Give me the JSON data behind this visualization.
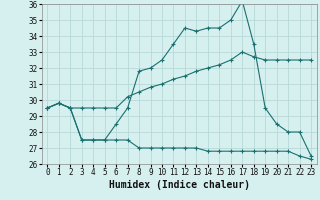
{
  "xlabel": "Humidex (Indice chaleur)",
  "background_color": "#d6f0ef",
  "grid_color": "#b8d8d8",
  "line_color": "#1a7070",
  "x": [
    0,
    1,
    2,
    3,
    4,
    5,
    6,
    7,
    8,
    9,
    10,
    11,
    12,
    13,
    14,
    15,
    16,
    17,
    18,
    19,
    20,
    21,
    22,
    23
  ],
  "y_max": [
    29.5,
    29.8,
    29.5,
    27.5,
    27.5,
    27.5,
    28.5,
    29.5,
    31.8,
    32.0,
    32.5,
    33.5,
    34.5,
    34.3,
    34.5,
    34.5,
    35.0,
    36.2,
    33.5,
    29.5,
    28.5,
    28.0,
    28.0,
    26.5
  ],
  "y_avg": [
    29.5,
    29.8,
    29.5,
    29.5,
    29.5,
    29.5,
    29.5,
    30.2,
    30.5,
    30.8,
    31.0,
    31.3,
    31.5,
    31.8,
    32.0,
    32.2,
    32.5,
    33.0,
    32.7,
    32.5,
    32.5,
    32.5,
    32.5,
    32.5
  ],
  "y_min": [
    29.5,
    29.8,
    29.5,
    27.5,
    27.5,
    27.5,
    27.5,
    27.5,
    27.0,
    27.0,
    27.0,
    27.0,
    27.0,
    27.0,
    26.8,
    26.8,
    26.8,
    26.8,
    26.8,
    26.8,
    26.8,
    26.8,
    26.5,
    26.3
  ],
  "ylim": [
    26,
    36
  ],
  "yticks": [
    26,
    27,
    28,
    29,
    30,
    31,
    32,
    33,
    34,
    35,
    36
  ],
  "xlim": [
    -0.5,
    23.5
  ],
  "xticks": [
    0,
    1,
    2,
    3,
    4,
    5,
    6,
    7,
    8,
    9,
    10,
    11,
    12,
    13,
    14,
    15,
    16,
    17,
    18,
    19,
    20,
    21,
    22,
    23
  ],
  "tick_fontsize": 5.5,
  "xlabel_fontsize": 7
}
